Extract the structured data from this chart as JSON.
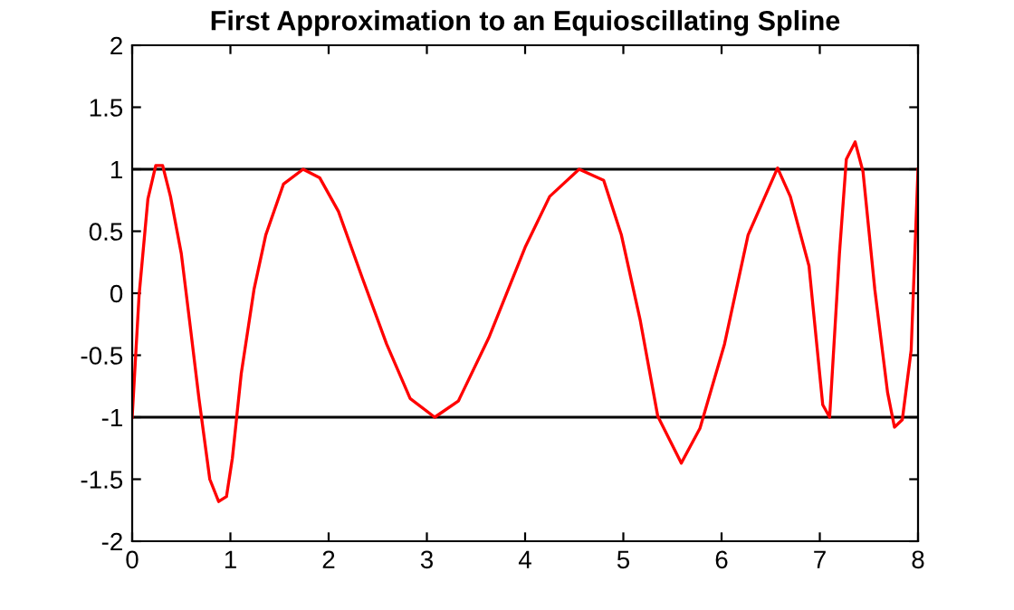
{
  "chart_data": {
    "type": "line",
    "title": "First Approximation to an Equioscillating Spline",
    "series": [
      {
        "color": "#ff0000",
        "x": [
          0,
          0.07,
          0.16,
          0.24,
          0.31,
          0.39,
          0.5,
          0.59,
          0.68,
          0.79,
          0.88,
          0.96,
          1.02,
          1.11,
          1.24,
          1.36,
          1.54,
          1.74,
          1.91,
          2.1,
          2.34,
          2.59,
          2.83,
          3.08,
          3.32,
          3.63,
          4.0,
          4.25,
          4.55,
          4.8,
          4.98,
          5.17,
          5.35,
          5.59,
          5.78,
          6.03,
          6.27,
          6.57,
          6.7,
          6.89,
          7.03,
          7.1,
          7.2,
          7.27,
          7.36,
          7.44,
          7.56,
          7.69,
          7.76,
          7.84,
          7.93,
          8.0
        ],
        "values": [
          -1.0,
          -0.02,
          0.76,
          1.03,
          1.03,
          0.78,
          0.32,
          -0.26,
          -0.85,
          -1.5,
          -1.68,
          -1.64,
          -1.33,
          -0.65,
          0.03,
          0.47,
          0.88,
          1.0,
          0.93,
          0.66,
          0.13,
          -0.41,
          -0.85,
          -1.0,
          -0.87,
          -0.36,
          0.37,
          0.78,
          1.0,
          0.91,
          0.47,
          -0.21,
          -0.99,
          -1.37,
          -1.09,
          -0.41,
          0.47,
          1.01,
          0.78,
          0.22,
          -0.9,
          -1.0,
          0.32,
          1.08,
          1.22,
          0.98,
          0.03,
          -0.8,
          -1.08,
          -1.02,
          -0.46,
          1.0
        ]
      }
    ],
    "ref_lines": [
      {
        "axis": "y",
        "value": 1,
        "color": "#000000"
      },
      {
        "axis": "y",
        "value": -1,
        "color": "#000000"
      }
    ],
    "xlim": [
      0,
      8
    ],
    "xticks": [
      0,
      1,
      2,
      3,
      4,
      5,
      6,
      7,
      8
    ],
    "ylim": [
      -2,
      2
    ],
    "yticks": [
      -2,
      -1.5,
      -1,
      -0.5,
      0,
      0.5,
      1,
      1.5,
      2
    ],
    "grid": false,
    "legend": false,
    "marker": "none",
    "line_style": "solid"
  }
}
